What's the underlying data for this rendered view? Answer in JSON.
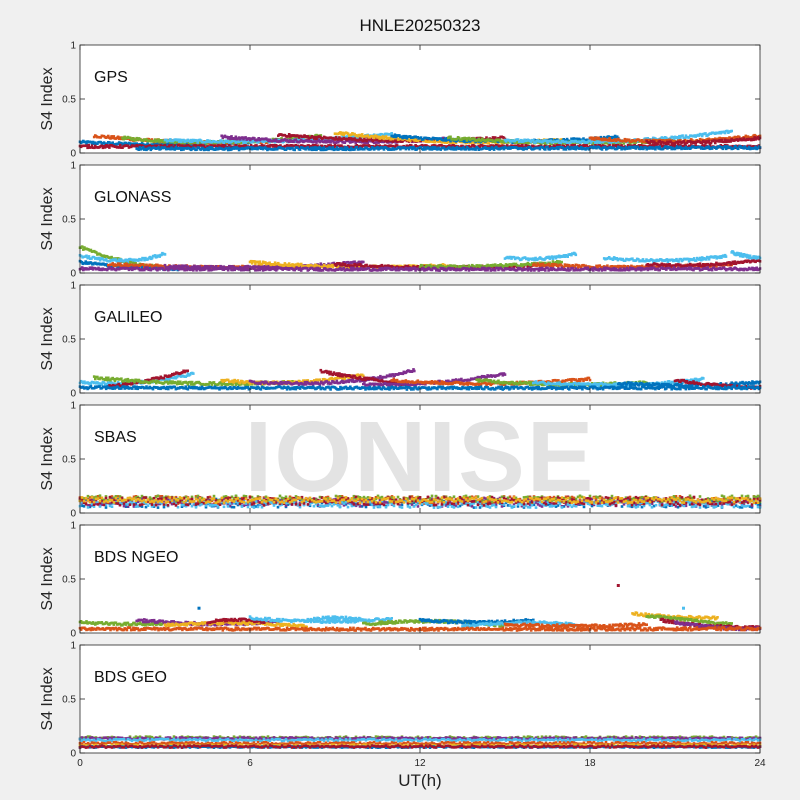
{
  "title": "HNLE20250323",
  "xlabel": "UT(h)",
  "watermark": "IONISE",
  "colors": [
    "#0072BD",
    "#D95319",
    "#EDB120",
    "#7E2F8E",
    "#77AC30",
    "#4DBEEE",
    "#A2142F"
  ],
  "chart_data": [
    {
      "type": "scatter",
      "panel_label": "GPS",
      "ylabel": "S4 Index",
      "xlim": [
        0,
        24
      ],
      "ylim": [
        0,
        1
      ],
      "x_ticks": [
        0,
        6,
        12,
        18,
        24
      ],
      "y_ticks": [
        0,
        0.5,
        1
      ],
      "grid": false,
      "typical_range": [
        0.03,
        0.22
      ],
      "arcs": [
        {
          "x": [
            0.0,
            3.0,
            6.0
          ],
          "y": [
            0.1,
            0.06,
            0.1
          ],
          "series": 0
        },
        {
          "x": [
            0.5,
            4.0,
            7.5
          ],
          "y": [
            0.16,
            0.06,
            0.12
          ],
          "series": 1
        },
        {
          "x": [
            1.5,
            5.0,
            8.5
          ],
          "y": [
            0.14,
            0.05,
            0.16
          ],
          "series": 4
        },
        {
          "x": [
            3.0,
            7.0,
            11.0
          ],
          "y": [
            0.12,
            0.07,
            0.18
          ],
          "series": 5
        },
        {
          "x": [
            5.0,
            9.0,
            13.0
          ],
          "y": [
            0.15,
            0.07,
            0.13
          ],
          "series": 3
        },
        {
          "x": [
            7.0,
            11.0,
            15.0
          ],
          "y": [
            0.17,
            0.08,
            0.14
          ],
          "series": 6
        },
        {
          "x": [
            9.0,
            13.0,
            17.0
          ],
          "y": [
            0.19,
            0.06,
            0.12
          ],
          "series": 2
        },
        {
          "x": [
            11.0,
            15.0,
            19.0
          ],
          "y": [
            0.16,
            0.06,
            0.15
          ],
          "series": 0
        },
        {
          "x": [
            13.0,
            17.0,
            21.0
          ],
          "y": [
            0.14,
            0.06,
            0.12
          ],
          "series": 4
        },
        {
          "x": [
            15.0,
            19.0,
            23.0
          ],
          "y": [
            0.12,
            0.06,
            0.2
          ],
          "series": 5
        },
        {
          "x": [
            18.0,
            21.0,
            24.0
          ],
          "y": [
            0.14,
            0.07,
            0.16
          ],
          "series": 1
        },
        {
          "x": [
            20.0,
            22.0,
            24.0
          ],
          "y": [
            0.1,
            0.08,
            0.14
          ],
          "series": 6
        },
        {
          "x": [
            0.0,
            12.0,
            24.0
          ],
          "y": [
            0.06,
            0.06,
            0.06
          ],
          "series": 6
        },
        {
          "x": [
            2.0,
            13.0,
            24.0
          ],
          "y": [
            0.04,
            0.04,
            0.05
          ],
          "series": 0
        }
      ]
    },
    {
      "type": "scatter",
      "panel_label": "GLONASS",
      "ylabel": "S4 Index",
      "xlim": [
        0,
        24
      ],
      "ylim": [
        0,
        1
      ],
      "x_ticks": [
        0,
        6,
        12,
        18,
        24
      ],
      "y_ticks": [
        0,
        0.5,
        1
      ],
      "grid": false,
      "typical_range": [
        0.02,
        0.24
      ],
      "arcs": [
        {
          "x": [
            0.0,
            1.5,
            3.0
          ],
          "y": [
            0.24,
            0.08,
            0.05
          ],
          "series": 4
        },
        {
          "x": [
            0.0,
            1.8,
            3.0
          ],
          "y": [
            0.16,
            0.06,
            0.18
          ],
          "series": 5
        },
        {
          "x": [
            0.0,
            1.5,
            3.5
          ],
          "y": [
            0.1,
            0.05,
            0.04
          ],
          "series": 0
        },
        {
          "x": [
            1.0,
            4.5,
            8.0
          ],
          "y": [
            0.08,
            0.04,
            0.06
          ],
          "series": 1
        },
        {
          "x": [
            3.0,
            6.5,
            10.0
          ],
          "y": [
            0.06,
            0.03,
            0.1
          ],
          "series": 3
        },
        {
          "x": [
            6.0,
            9.5,
            13.0
          ],
          "y": [
            0.1,
            0.03,
            0.07
          ],
          "series": 2
        },
        {
          "x": [
            9.0,
            12.5,
            16.0
          ],
          "y": [
            0.08,
            0.03,
            0.07
          ],
          "series": 6
        },
        {
          "x": [
            12.0,
            14.5,
            17.0
          ],
          "y": [
            0.06,
            0.05,
            0.1
          ],
          "series": 4
        },
        {
          "x": [
            15.0,
            16.5,
            17.5
          ],
          "y": [
            0.14,
            0.11,
            0.18
          ],
          "series": 5
        },
        {
          "x": [
            16.0,
            19.5,
            23.0
          ],
          "y": [
            0.08,
            0.03,
            0.08
          ],
          "series": 1
        },
        {
          "x": [
            18.5,
            21.0,
            22.8
          ],
          "y": [
            0.14,
            0.08,
            0.16
          ],
          "series": 5
        },
        {
          "x": [
            20.0,
            22.0,
            24.0
          ],
          "y": [
            0.08,
            0.05,
            0.12
          ],
          "series": 6
        },
        {
          "x": [
            23.0,
            23.5,
            24.0
          ],
          "y": [
            0.19,
            0.15,
            0.14
          ],
          "series": 5
        },
        {
          "x": [
            0.0,
            12.0,
            24.0
          ],
          "y": [
            0.04,
            0.03,
            0.04
          ],
          "series": 3
        }
      ]
    },
    {
      "type": "scatter",
      "panel_label": "GALILEO",
      "ylabel": "S4 Index",
      "xlim": [
        0,
        24
      ],
      "ylim": [
        0,
        1
      ],
      "x_ticks": [
        0,
        6,
        12,
        18,
        24
      ],
      "y_ticks": [
        0,
        0.5,
        1
      ],
      "grid": false,
      "typical_range": [
        0.03,
        0.24
      ],
      "arcs": [
        {
          "x": [
            0.0,
            2.0,
            4.0
          ],
          "y": [
            0.1,
            0.05,
            0.18
          ],
          "series": 5
        },
        {
          "x": [
            1.0,
            2.5,
            3.8
          ],
          "y": [
            0.06,
            0.1,
            0.21
          ],
          "series": 6
        },
        {
          "x": [
            0.5,
            4.0,
            7.5
          ],
          "y": [
            0.14,
            0.06,
            0.1
          ],
          "series": 4
        },
        {
          "x": [
            5.0,
            7.5,
            10.0
          ],
          "y": [
            0.12,
            0.05,
            0.17
          ],
          "series": 2
        },
        {
          "x": [
            6.0,
            9.5,
            11.8
          ],
          "y": [
            0.1,
            0.05,
            0.21
          ],
          "series": 3
        },
        {
          "x": [
            8.5,
            10.0,
            11.5
          ],
          "y": [
            0.2,
            0.13,
            0.08
          ],
          "series": 6
        },
        {
          "x": [
            10.0,
            12.5,
            15.0
          ],
          "y": [
            0.08,
            0.06,
            0.18
          ],
          "series": 3
        },
        {
          "x": [
            11.0,
            14.5,
            18.0
          ],
          "y": [
            0.12,
            0.05,
            0.13
          ],
          "series": 1
        },
        {
          "x": [
            14.0,
            17.0,
            20.0
          ],
          "y": [
            0.12,
            0.05,
            0.1
          ],
          "series": 4
        },
        {
          "x": [
            16.0,
            19.5,
            22.0
          ],
          "y": [
            0.1,
            0.04,
            0.13
          ],
          "series": 5
        },
        {
          "x": [
            19.0,
            21.5,
            24.0
          ],
          "y": [
            0.09,
            0.05,
            0.1
          ],
          "series": 0
        },
        {
          "x": [
            21.0,
            22.5,
            24.0
          ],
          "y": [
            0.12,
            0.06,
            0.05
          ],
          "series": 6
        },
        {
          "x": [
            0.0,
            12.0,
            24.0
          ],
          "y": [
            0.05,
            0.04,
            0.05
          ],
          "series": 0
        }
      ]
    },
    {
      "type": "scatter",
      "panel_label": "SBAS",
      "ylabel": "S4 Index",
      "xlim": [
        0,
        24
      ],
      "ylim": [
        0,
        1
      ],
      "x_ticks": [
        0,
        6,
        12,
        18,
        24
      ],
      "y_ticks": [
        0,
        0.5,
        1
      ],
      "grid": false,
      "typical_range": [
        0.05,
        0.17
      ],
      "bands": [
        {
          "series": 0,
          "level": 0.09,
          "spread": 0.04
        },
        {
          "series": 1,
          "level": 0.12,
          "spread": 0.035
        },
        {
          "series": 3,
          "level": 0.1,
          "spread": 0.04
        },
        {
          "series": 4,
          "level": 0.13,
          "spread": 0.03
        },
        {
          "series": 5,
          "level": 0.08,
          "spread": 0.03
        },
        {
          "series": 6,
          "level": 0.11,
          "spread": 0.04
        },
        {
          "series": 2,
          "level": 0.12,
          "spread": 0.025
        }
      ]
    },
    {
      "type": "scatter",
      "panel_label": "BDS NGEO",
      "ylabel": "S4 Index",
      "xlim": [
        0,
        24
      ],
      "ylim": [
        0,
        1
      ],
      "x_ticks": [
        0,
        6,
        12,
        18,
        24
      ],
      "y_ticks": [
        0,
        0.5,
        1
      ],
      "grid": false,
      "typical_range": [
        0.02,
        0.2
      ],
      "arcs": [
        {
          "x": [
            0.0,
            1.5,
            3.0
          ],
          "y": [
            0.1,
            0.07,
            0.09
          ],
          "series": 4
        },
        {
          "x": [
            2.0,
            4.5,
            7.0
          ],
          "y": [
            0.12,
            0.06,
            0.1
          ],
          "series": 3
        },
        {
          "x": [
            3.0,
            5.5,
            8.0
          ],
          "y": [
            0.07,
            0.12,
            0.06
          ],
          "series": 2
        },
        {
          "x": [
            4.5,
            5.5,
            6.5
          ],
          "y": [
            0.1,
            0.15,
            0.1
          ],
          "series": 6
        },
        {
          "x": [
            6.0,
            8.5,
            11.0
          ],
          "y": [
            0.14,
            0.08,
            0.13
          ],
          "series": 5
        },
        {
          "x": [
            8.0,
            9.0,
            10.0
          ],
          "y": [
            0.12,
            0.16,
            0.12
          ],
          "series": 5
        },
        {
          "x": [
            10.0,
            12.5,
            15.0
          ],
          "y": [
            0.08,
            0.14,
            0.07
          ],
          "series": 4
        },
        {
          "x": [
            12.0,
            14.0,
            16.0
          ],
          "y": [
            0.12,
            0.08,
            0.12
          ],
          "series": 0
        },
        {
          "x": [
            13.5,
            15.5,
            17.5
          ],
          "y": [
            0.06,
            0.12,
            0.08
          ],
          "series": 5
        },
        {
          "x": [
            15.0,
            17.5,
            20.0
          ],
          "y": [
            0.08,
            0.05,
            0.08
          ],
          "series": 1
        },
        {
          "x": [
            19.5,
            21.0,
            22.5
          ],
          "y": [
            0.18,
            0.14,
            0.14
          ],
          "series": 2
        },
        {
          "x": [
            20.0,
            21.5,
            23.0
          ],
          "y": [
            0.16,
            0.12,
            0.08
          ],
          "series": 4
        },
        {
          "x": [
            20.5,
            22.0,
            24.0
          ],
          "y": [
            0.12,
            0.05,
            0.05
          ],
          "series": 6
        },
        {
          "x": [
            21.0,
            22.5,
            24.0
          ],
          "y": [
            0.1,
            0.03,
            0.04
          ],
          "series": 3
        },
        {
          "x": [
            0.0,
            12.0,
            24.0
          ],
          "y": [
            0.04,
            0.03,
            0.04
          ],
          "series": 1
        }
      ],
      "outliers": [
        {
          "x": 4.2,
          "y": 0.23,
          "series": 0
        },
        {
          "x": 19.0,
          "y": 0.44,
          "series": 6
        },
        {
          "x": 21.3,
          "y": 0.23,
          "series": 5
        }
      ]
    },
    {
      "type": "scatter",
      "panel_label": "BDS GEO",
      "ylabel": "S4 Index",
      "xlim": [
        0,
        24
      ],
      "ylim": [
        0,
        1
      ],
      "x_ticks": [
        0,
        6,
        12,
        18,
        24
      ],
      "y_ticks": [
        0,
        0.5,
        1
      ],
      "grid": false,
      "typical_range": [
        0.04,
        0.16
      ],
      "bands": [
        {
          "series": 4,
          "level": 0.14,
          "spread": 0.012
        },
        {
          "series": 3,
          "level": 0.135,
          "spread": 0.01
        },
        {
          "series": 5,
          "level": 0.12,
          "spread": 0.01
        },
        {
          "series": 1,
          "level": 0.09,
          "spread": 0.01
        },
        {
          "series": 2,
          "level": 0.07,
          "spread": 0.008
        },
        {
          "series": 0,
          "level": 0.055,
          "spread": 0.006
        },
        {
          "series": 6,
          "level": 0.06,
          "spread": 0.01
        }
      ]
    }
  ]
}
